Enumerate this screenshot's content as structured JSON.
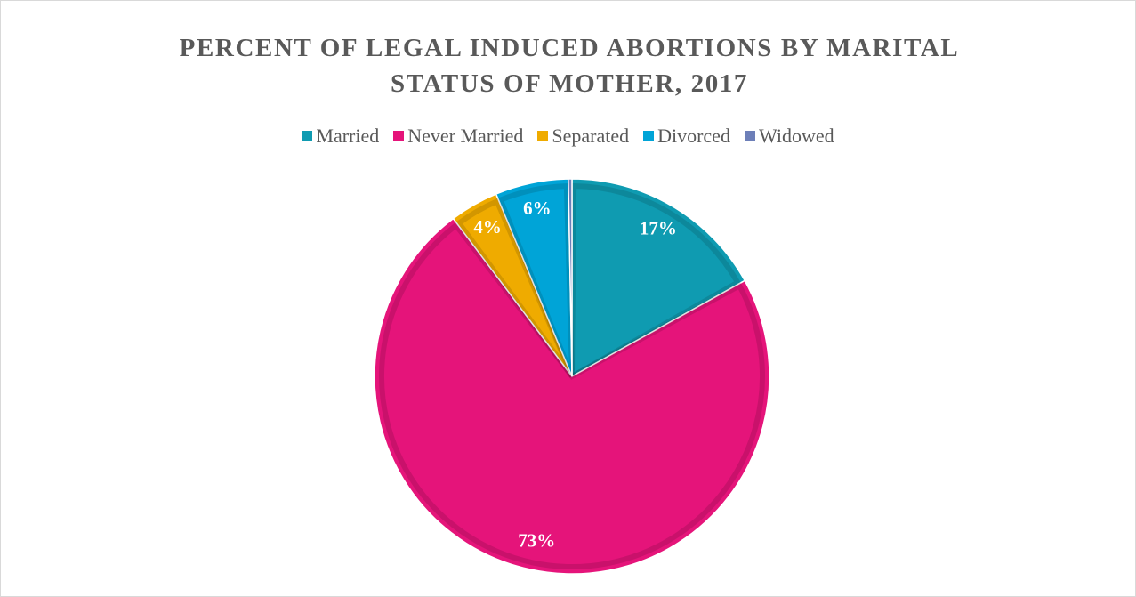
{
  "chart_data": {
    "type": "pie",
    "title": "PERCENT OF LEGAL INDUCED ABORTIONS BY MARITAL STATUS OF MOTHER, 2017",
    "categories": [
      "Married",
      "Never Married",
      "Separated",
      "Divorced",
      "Widowed"
    ],
    "values": [
      17,
      73,
      4,
      6,
      0.3
    ],
    "value_labels": [
      "17%",
      "73%",
      "4%",
      "6%",
      null
    ],
    "colors": [
      "#0f9bb1",
      "#e5147a",
      "#efab00",
      "#00a4d7",
      "#6d7fb8"
    ],
    "legend": "top"
  }
}
